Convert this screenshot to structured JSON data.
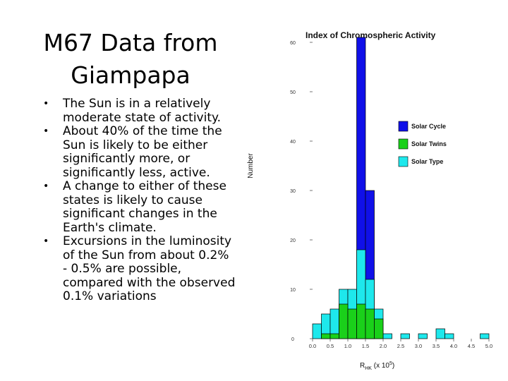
{
  "slide": {
    "title": "M67 Data from Giampapa",
    "bullets": [
      "The Sun is in a relatively moderate state of activity.",
      "About 40% of the time the Sun is likely to be either significantly more, or significantly less, active.",
      "A change to either of these states is likely to cause significant changes in the Earth's climate.",
      "Excursions in the luminosity of the Sun from about 0.2% - 0.5% are possible, compared with the observed 0.1% variations"
    ]
  },
  "chart_data": {
    "type": "bar",
    "title": "Index of Chromospheric Activity",
    "xlabel_main": "R",
    "xlabel_sub": "HK",
    "xlabel_rest": " (x 10",
    "xlabel_sup": "5",
    "xlabel_close": ")",
    "ylabel": "Number",
    "xlim": [
      0.0,
      5.0
    ],
    "ylim": [
      0,
      60
    ],
    "bin_width": 0.25,
    "x_ticks": [
      "0.0",
      "0.5",
      "1.0",
      "1.5",
      "2.0",
      "2.5",
      "3.0",
      "3.5",
      "4.0",
      "4.5",
      "5.0"
    ],
    "y_ticks": [
      "0",
      "10",
      "20",
      "30",
      "40",
      "50",
      "60"
    ],
    "legend_position": "right",
    "series": [
      {
        "name": "Solar Cycle",
        "color": "#1010e8",
        "bins": [
          {
            "x0": 1.25,
            "value": 61
          },
          {
            "x0": 1.5,
            "value": 30
          }
        ]
      },
      {
        "name": "Solar Type",
        "color": "#1ee8ec",
        "bins": [
          {
            "x0": 0.0,
            "value": 3
          },
          {
            "x0": 0.25,
            "value": 5
          },
          {
            "x0": 0.5,
            "value": 6
          },
          {
            "x0": 0.75,
            "value": 10
          },
          {
            "x0": 1.0,
            "value": 10
          },
          {
            "x0": 1.25,
            "value": 18
          },
          {
            "x0": 1.5,
            "value": 12
          },
          {
            "x0": 1.75,
            "value": 6
          },
          {
            "x0": 2.0,
            "value": 1
          },
          {
            "x0": 2.5,
            "value": 1
          },
          {
            "x0": 3.0,
            "value": 1
          },
          {
            "x0": 3.5,
            "value": 2
          },
          {
            "x0": 3.75,
            "value": 1
          },
          {
            "x0": 4.75,
            "value": 1
          }
        ]
      },
      {
        "name": "Solar Twins",
        "color": "#1ad01a",
        "bins": [
          {
            "x0": 0.25,
            "value": 1
          },
          {
            "x0": 0.5,
            "value": 1
          },
          {
            "x0": 0.75,
            "value": 7
          },
          {
            "x0": 1.0,
            "value": 6
          },
          {
            "x0": 1.25,
            "value": 7
          },
          {
            "x0": 1.5,
            "value": 6
          },
          {
            "x0": 1.75,
            "value": 4
          }
        ]
      }
    ],
    "legend": [
      {
        "name": "Solar Cycle",
        "color": "#1010e8"
      },
      {
        "name": "Solar Twins",
        "color": "#1ad01a"
      },
      {
        "name": "Solar Type",
        "color": "#1ee8ec"
      }
    ]
  }
}
